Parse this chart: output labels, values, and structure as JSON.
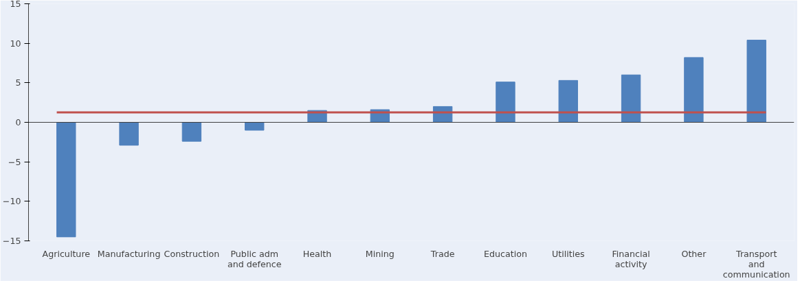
{
  "chart_data": {
    "type": "bar",
    "categories": [
      "Agriculture",
      "Manufacturing",
      "Construction",
      "Public adm\nand defence",
      "Health",
      "Mining",
      "Trade",
      "Education",
      "Utilities",
      "Financial\nactivity",
      "Other",
      "Transport\nand\ncommunication"
    ],
    "values": [
      -14.5,
      -2.9,
      -2.4,
      -1.0,
      1.5,
      1.6,
      2.0,
      5.1,
      5.3,
      6.0,
      8.2,
      10.4
    ],
    "color": "#4f81bd",
    "ylim": [
      -15,
      15
    ],
    "yticks": [
      -15,
      -10,
      -5,
      0,
      5,
      10,
      15
    ],
    "ref_lines": [
      {
        "axis": "y",
        "value": 1.25,
        "color": "#c0504d"
      }
    ]
  }
}
